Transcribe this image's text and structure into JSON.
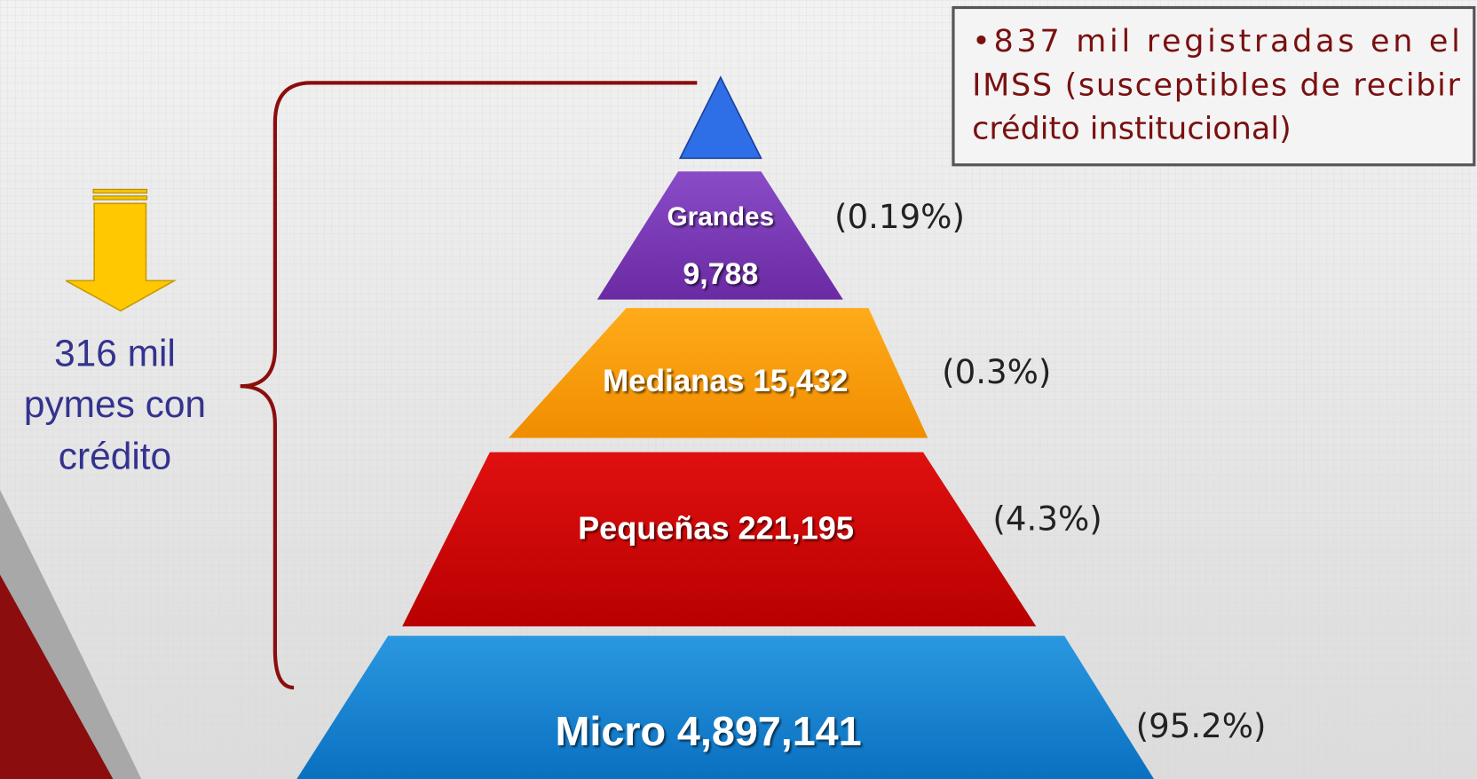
{
  "callout": {
    "lines": [
      "•837 mil registradas en el",
      "IMSS (susceptibles de recibir",
      "crédito institucional)"
    ]
  },
  "side_label": {
    "lines": [
      "316 mil",
      "pymes con",
      "crédito"
    ]
  },
  "levels": [
    {
      "name": "Grandes",
      "value": "9,788",
      "share": "(0.19%)"
    },
    {
      "name": "Medianas",
      "value": "15,432",
      "share": "(0.3%)"
    },
    {
      "name": "Pequeñas",
      "value": "221,195",
      "share": "(4.3%)"
    },
    {
      "name": "Micro",
      "value": "4,897,141",
      "share": "(95.2%)"
    }
  ]
}
